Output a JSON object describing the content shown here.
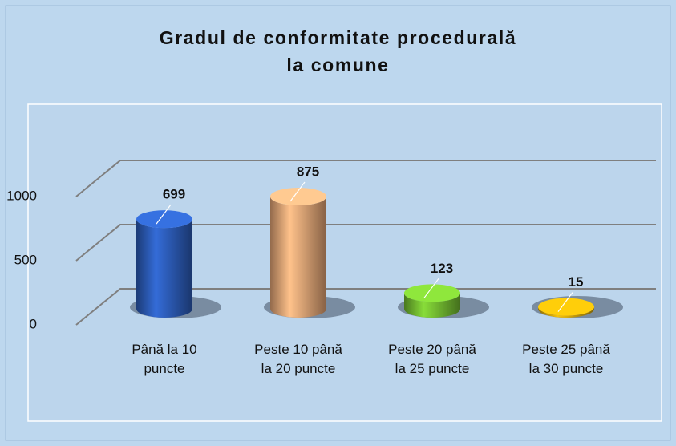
{
  "chart_data": {
    "type": "bar3d",
    "title": "Gradul de conformitate procedurală\nla comune",
    "categories": [
      "Până la 10\npuncte",
      "Peste 10 până\nla 20 puncte",
      "Peste 20 până\nla 25 puncte",
      "Peste 25 până\nla 30 puncte"
    ],
    "values": [
      699,
      875,
      123,
      15
    ],
    "colors": [
      "#2f62c4",
      "#f5b07e",
      "#7cc934",
      "#e3b309"
    ],
    "ylim": [
      0,
      1000
    ],
    "yticks": [
      0,
      500,
      1000
    ],
    "grid": true
  }
}
